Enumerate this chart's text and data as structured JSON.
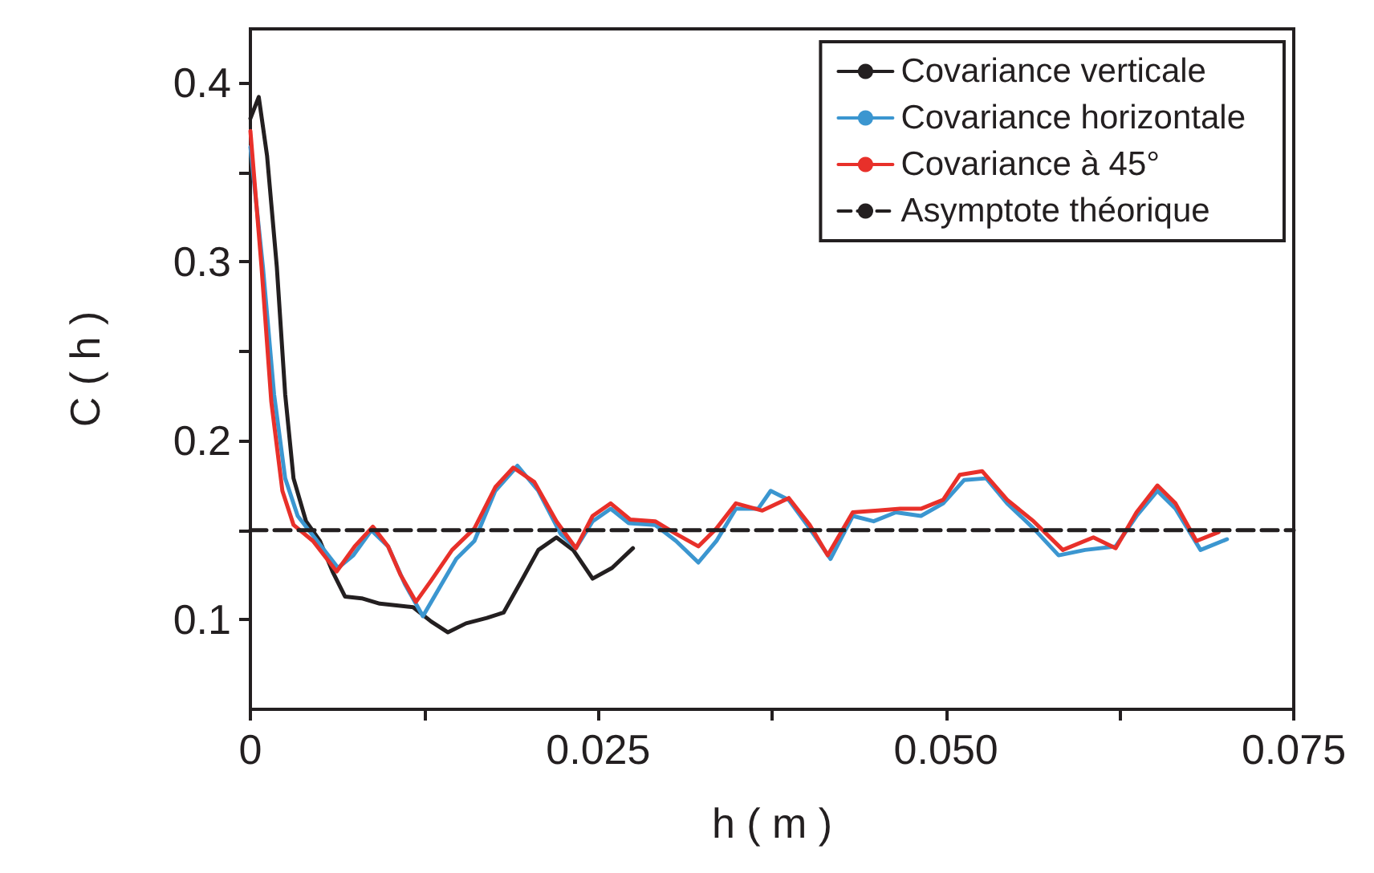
{
  "chart_data": {
    "type": "line",
    "xlabel": "h ( m )",
    "ylabel": "C ( h )",
    "xlim": [
      0,
      0.075
    ],
    "ylim": [
      0.05,
      0.43
    ],
    "xticks": [
      0,
      {
        "value": 0.0125,
        "label": null
      },
      {
        "value": 0.025,
        "label": "0.025"
      },
      {
        "value": 0.0375,
        "label": null
      },
      {
        "value": 0.05,
        "label": "0.050"
      },
      {
        "value": 0.0625,
        "label": null
      },
      {
        "value": 0.075,
        "label": "0.075"
      }
    ],
    "yticks": [
      0.1,
      {
        "value": 0.15,
        "label": null
      },
      0.2,
      {
        "value": 0.25,
        "label": null
      },
      0.3,
      {
        "value": 0.35,
        "label": null
      },
      0.4
    ],
    "grid": false,
    "legend": "top right",
    "marker": "none",
    "series": [
      {
        "name": "Covariance verticale",
        "color": "#231f20",
        "x": [
          0,
          0.0006,
          0.0012,
          0.0019,
          0.0025,
          0.0031,
          0.004,
          0.005,
          0.0059,
          0.0068,
          0.008,
          0.0093,
          0.0105,
          0.0117,
          0.013,
          0.0142,
          0.0155,
          0.017,
          0.0182,
          0.0195,
          0.0207,
          0.022,
          0.0232,
          0.0246,
          0.026,
          0.0275
        ],
        "values": [
          0.38,
          0.392,
          0.359,
          0.297,
          0.226,
          0.179,
          0.155,
          0.144,
          0.127,
          0.113,
          0.112,
          0.109,
          0.108,
          0.107,
          0.099,
          0.093,
          0.098,
          0.101,
          0.104,
          0.122,
          0.139,
          0.146,
          0.139,
          0.123,
          0.129,
          0.14
        ]
      },
      {
        "name": "Covariance horizontale",
        "color": "#3b96d0",
        "x": [
          0,
          0.0009,
          0.0017,
          0.0025,
          0.0034,
          0.0046,
          0.0063,
          0.0074,
          0.0087,
          0.0099,
          0.0111,
          0.0124,
          0.0136,
          0.0148,
          0.0161,
          0.0176,
          0.0192,
          0.0207,
          0.0223,
          0.0234,
          0.0246,
          0.0259,
          0.0272,
          0.0291,
          0.0306,
          0.0322,
          0.0335,
          0.0349,
          0.0365,
          0.0374,
          0.0387,
          0.0402,
          0.0417,
          0.0433,
          0.0448,
          0.0464,
          0.0482,
          0.0498,
          0.0513,
          0.0529,
          0.0544,
          0.0563,
          0.0581,
          0.06,
          0.0622,
          0.0637,
          0.0652,
          0.0665,
          0.0683,
          0.0702
        ],
        "values": [
          0.364,
          0.297,
          0.226,
          0.179,
          0.158,
          0.146,
          0.129,
          0.136,
          0.15,
          0.141,
          0.12,
          0.102,
          0.118,
          0.134,
          0.144,
          0.172,
          0.186,
          0.172,
          0.148,
          0.14,
          0.155,
          0.162,
          0.154,
          0.153,
          0.144,
          0.132,
          0.144,
          0.162,
          0.162,
          0.172,
          0.167,
          0.151,
          0.134,
          0.158,
          0.155,
          0.16,
          0.158,
          0.165,
          0.178,
          0.179,
          0.165,
          0.151,
          0.136,
          0.139,
          0.141,
          0.158,
          0.172,
          0.162,
          0.139,
          0.145
        ]
      },
      {
        "name": "Covariance à 45°",
        "color": "#e8302a",
        "x": [
          0,
          0.0008,
          0.0015,
          0.0023,
          0.0031,
          0.0045,
          0.0062,
          0.0075,
          0.0088,
          0.0099,
          0.0108,
          0.0119,
          0.013,
          0.0145,
          0.0161,
          0.0176,
          0.0189,
          0.0204,
          0.022,
          0.0234,
          0.0246,
          0.0259,
          0.0273,
          0.0291,
          0.0306,
          0.0322,
          0.0335,
          0.0349,
          0.0368,
          0.0387,
          0.0402,
          0.0415,
          0.0433,
          0.0451,
          0.0467,
          0.0482,
          0.0498,
          0.051,
          0.0526,
          0.0544,
          0.0563,
          0.0584,
          0.0606,
          0.0622,
          0.0637,
          0.0652,
          0.0665,
          0.068,
          0.0696
        ],
        "values": [
          0.373,
          0.297,
          0.222,
          0.172,
          0.153,
          0.144,
          0.127,
          0.141,
          0.152,
          0.141,
          0.125,
          0.11,
          0.122,
          0.139,
          0.151,
          0.174,
          0.185,
          0.177,
          0.155,
          0.14,
          0.158,
          0.165,
          0.156,
          0.155,
          0.148,
          0.141,
          0.151,
          0.165,
          0.161,
          0.168,
          0.153,
          0.136,
          0.16,
          0.161,
          0.162,
          0.162,
          0.167,
          0.181,
          0.183,
          0.167,
          0.155,
          0.139,
          0.146,
          0.14,
          0.16,
          0.175,
          0.165,
          0.144,
          0.149
        ]
      },
      {
        "name": "Asymptote théorique",
        "color": "#231f20",
        "line_style": "dashed",
        "x": [
          0,
          0.075
        ],
        "values": [
          0.15,
          0.15
        ]
      }
    ]
  }
}
